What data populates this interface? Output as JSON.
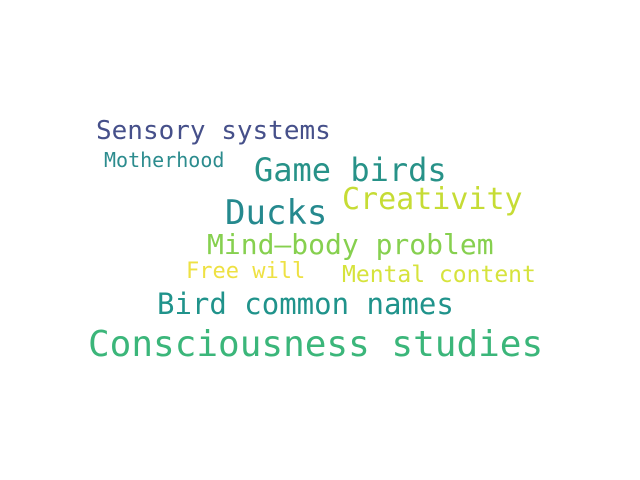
{
  "palette": {
    "background": "#ffffff"
  },
  "words": [
    {
      "id": "w-sensory",
      "text": "Sensory systems",
      "color": "#46508a"
    },
    {
      "id": "w-mother",
      "text": "Motherhood",
      "color": "#2c8c8e"
    },
    {
      "id": "w-game",
      "text": "Game birds",
      "color": "#279288"
    },
    {
      "id": "w-creat",
      "text": "Creativity",
      "color": "#c6dc35"
    },
    {
      "id": "w-ducks",
      "text": "Ducks",
      "color": "#25898e"
    },
    {
      "id": "w-mindbody",
      "text": "Mind–body problem",
      "color": "#86d04f"
    },
    {
      "id": "w-free",
      "text": "Free will",
      "color": "#eee143"
    },
    {
      "id": "w-mental",
      "text": "Mental content",
      "color": "#d6e33c"
    },
    {
      "id": "w-birdnames",
      "text": "Bird common names",
      "color": "#20938b"
    },
    {
      "id": "w-conscious",
      "text": "Consciousness studies",
      "color": "#3bb67a"
    }
  ]
}
